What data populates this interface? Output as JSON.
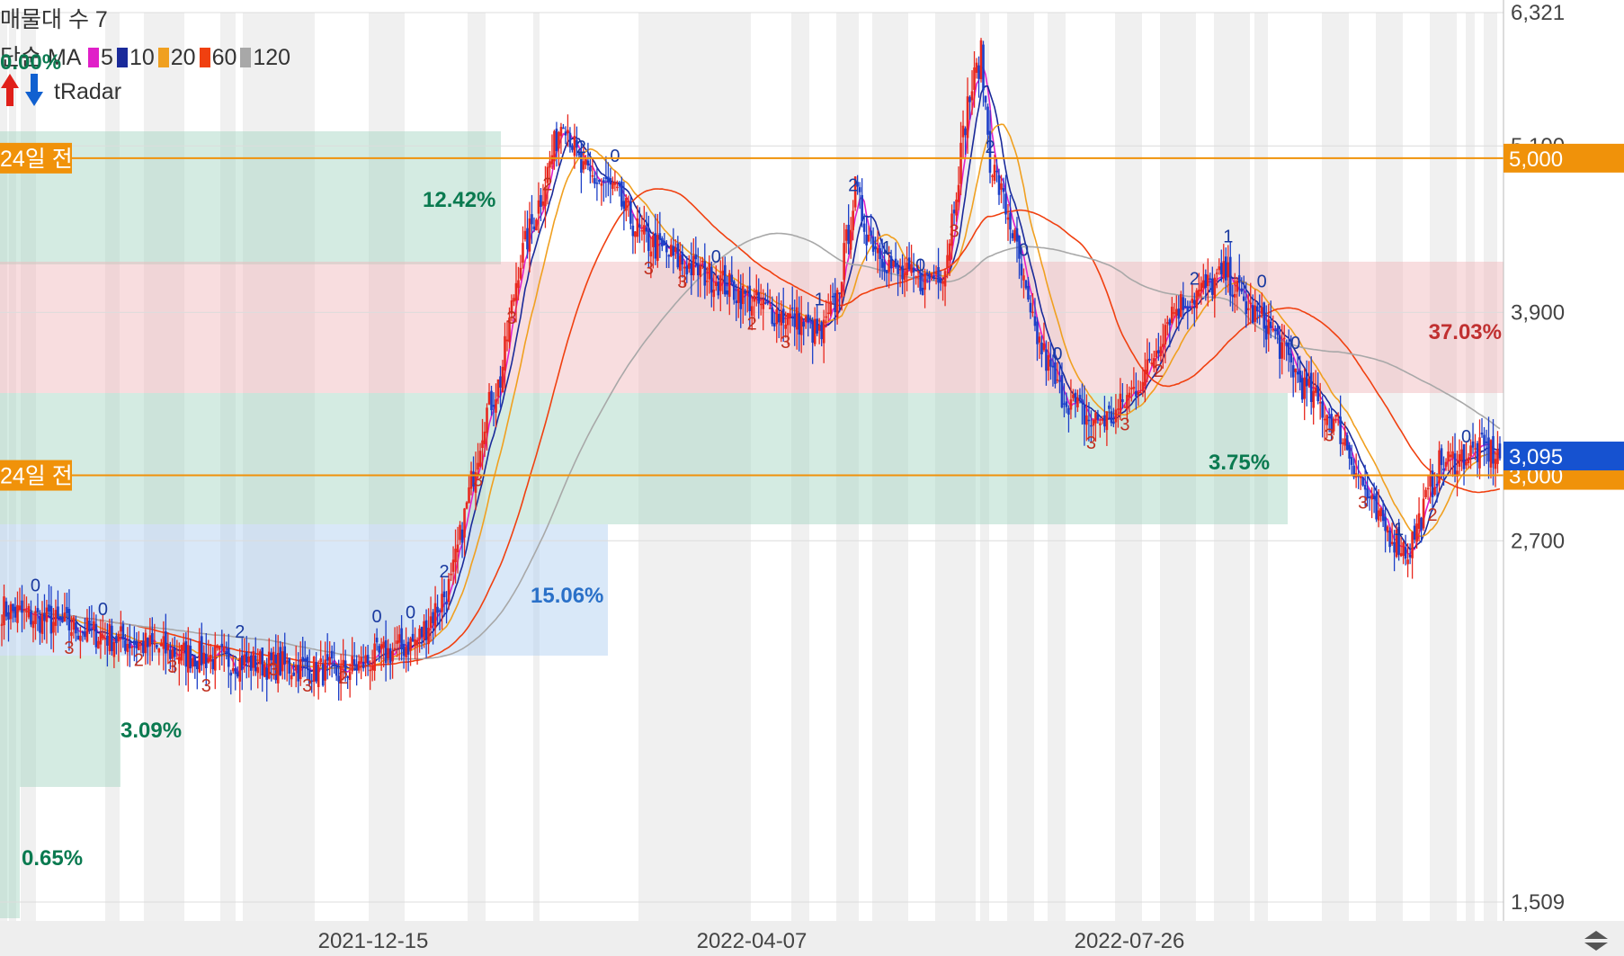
{
  "legend": {
    "volume_profile": "매물대 수 7",
    "ma_type": "단순 MA",
    "ma_periods": [
      {
        "period": "5",
        "color": "#e020c8"
      },
      {
        "period": "10",
        "color": "#1a2a9a"
      },
      {
        "period": "20",
        "color": "#f0a020"
      },
      {
        "period": "60",
        "color": "#f04010"
      },
      {
        "period": "120",
        "color": "#a8a8a8"
      }
    ],
    "pct_partial": "0.00%",
    "tradar_label": "tRadar",
    "up_arrow_color": "#e0201a",
    "down_arrow_color": "#1060d0"
  },
  "chart_data": {
    "type": "candlestick",
    "y_axis": {
      "scale": "log",
      "ticks": [
        "6,321",
        "5,100",
        "3,900",
        "2,700",
        "1,509"
      ],
      "tick_values": [
        6321,
        5100,
        3900,
        2700,
        1509
      ],
      "range": [
        1480,
        6400
      ]
    },
    "x_axis": {
      "ticks": [
        "2021-12-15",
        "2022-04-07",
        "2022-07-26"
      ]
    },
    "price_badges": [
      {
        "label": "5,000",
        "value": 5000,
        "color": "#f0920a"
      },
      {
        "label": "3,000",
        "value": 3000,
        "color": "#f0920a"
      },
      {
        "label": "3,095",
        "value": 3095,
        "color": "#1652d0"
      }
    ],
    "reference_lines": [
      {
        "label": "24일 전",
        "value": 5000,
        "color": "#f0920a"
      },
      {
        "label": "24일 전",
        "value": 3000,
        "color": "#f0920a"
      }
    ],
    "volume_zones": [
      {
        "label": "12.42%",
        "color": "#0a7a50"
      },
      {
        "label": "37.03%",
        "color": "#c03030"
      },
      {
        "label": "15.06%",
        "color": "#2a70c8"
      },
      {
        "label": "3.09%",
        "color": "#0a7a50"
      },
      {
        "label": "0.65%",
        "color": "#0a7a50"
      },
      {
        "label": "3.75%",
        "color": "#0a7a50"
      }
    ],
    "signal_marks": [
      "0",
      "3",
      "0",
      "2",
      "3",
      "3",
      "2",
      "3",
      "3",
      "2",
      "0",
      "0",
      "2",
      "3",
      "3",
      "2",
      "2",
      "0",
      "3",
      "3",
      "0",
      "2",
      "3",
      "1",
      "2",
      "1",
      "0",
      "3",
      "2",
      "0",
      "0",
      "3",
      "3",
      "2",
      "2",
      "1",
      "0",
      "0",
      "3",
      "3",
      "1",
      "2",
      "0"
    ],
    "key_prices": {
      "start": 2420,
      "dec_low": 2180,
      "jan_high": 5380,
      "jun_peak": 5900,
      "jul_low": 3270,
      "aug_high": 4150,
      "oct_low": 2650,
      "last": 3095
    },
    "candle_colors": {
      "up": "#e8281e",
      "down": "#1c3fc8"
    },
    "grid": true
  }
}
